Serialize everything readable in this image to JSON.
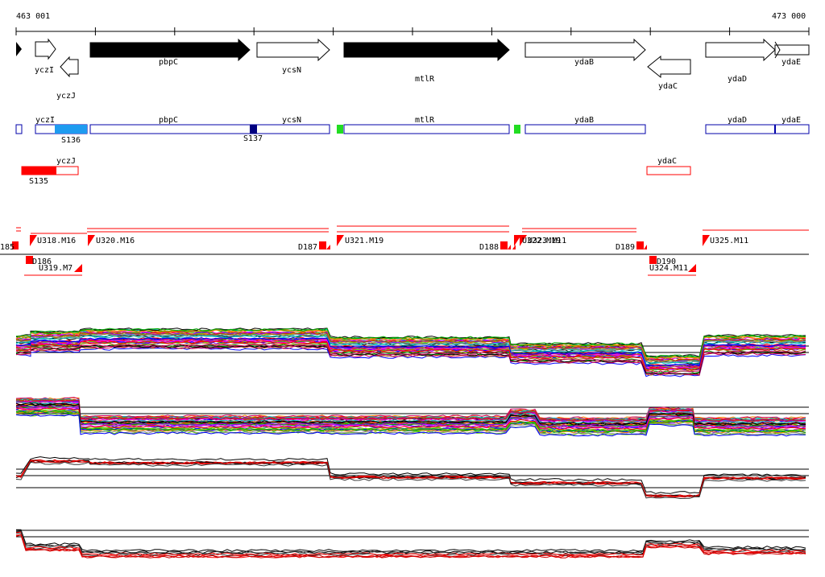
{
  "coords": {
    "start": "463 001",
    "end": "473 000"
  },
  "genes": [
    {
      "name": "",
      "dir": "L",
      "fill": true
    },
    {
      "name": "yczI",
      "dir": "R",
      "fill": false
    },
    {
      "name": "yczJ",
      "dir": "L",
      "fill": false
    },
    {
      "name": "pbpC",
      "dir": "R",
      "fill": true
    },
    {
      "name": "ycsN",
      "dir": "R",
      "fill": false
    },
    {
      "name": "mtlR",
      "dir": "R",
      "fill": true
    },
    {
      "name": "ydaB",
      "dir": "R",
      "fill": false
    },
    {
      "name": "ydaC",
      "dir": "L",
      "fill": false
    },
    {
      "name": "ydaD",
      "dir": "R",
      "fill": false
    },
    {
      "name": "ydaE",
      "dir": "R",
      "fill": false
    }
  ],
  "forward_track": {
    "labels": [
      "yczI",
      "pbpC",
      "ycsN",
      "mtlR",
      "ydaB",
      "ydaD",
      "ydaE"
    ],
    "segments": [
      "S136",
      "S137"
    ]
  },
  "reverse_track": {
    "labels": [
      "yczJ",
      "ydaC"
    ],
    "segments": [
      "S135"
    ]
  },
  "markers": {
    "up": [
      "U318.M16",
      "U320.M16",
      "U321.M19",
      "U322.M19",
      "U323.M11",
      "U325.M11"
    ],
    "down": [
      "185",
      "D186",
      "D187",
      "D188",
      "D189",
      "D190"
    ],
    "lower": [
      "U319.M7",
      "U324.M11"
    ]
  },
  "colors": {
    "gene_fill": "#000000",
    "track_blue": "#0000aa",
    "seg_cyan": "#1e9bf0",
    "seg_navy": "#000080",
    "seg_green": "#22dd22",
    "reverse_red": "#ff0000",
    "marker_red": "#ff0000"
  }
}
